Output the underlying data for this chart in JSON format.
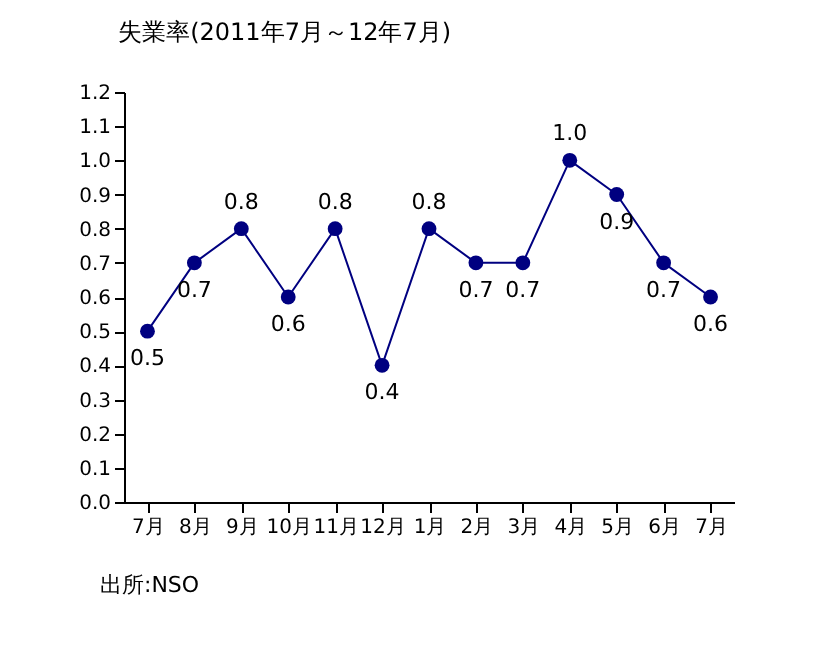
{
  "chart_data": {
    "type": "line",
    "title": "失業率(2011年7月～12年7月)",
    "categories": [
      "7月",
      "8月",
      "9月",
      "10月",
      "11月",
      "12月",
      "1月",
      "2月",
      "3月",
      "4月",
      "5月",
      "6月",
      "7月"
    ],
    "series": [
      {
        "color": "#000080",
        "values": [
          0.5,
          0.7,
          0.8,
          0.6,
          0.8,
          0.4,
          0.8,
          0.7,
          0.7,
          1.0,
          0.9,
          0.7,
          0.6
        ],
        "value_labels": [
          "0.5",
          "0.7",
          "0.8",
          "0.6",
          "0.8",
          "0.4",
          "0.8",
          "0.7",
          "0.7",
          "1.0",
          "0.9",
          "0.7",
          "0.6"
        ]
      }
    ],
    "ylim": [
      0,
      1.2
    ],
    "yticks": [
      {
        "value": 0,
        "label": "0.0"
      },
      0.1,
      0.2,
      0.3,
      0.4,
      0.5,
      0.6,
      0.7,
      0.8,
      0.9,
      {
        "value": 1,
        "label": "1.0"
      },
      1.1,
      1.2
    ],
    "grid": false,
    "marker": "circle",
    "line_style": "solid",
    "annotations": [
      "出所:NSO"
    ]
  }
}
